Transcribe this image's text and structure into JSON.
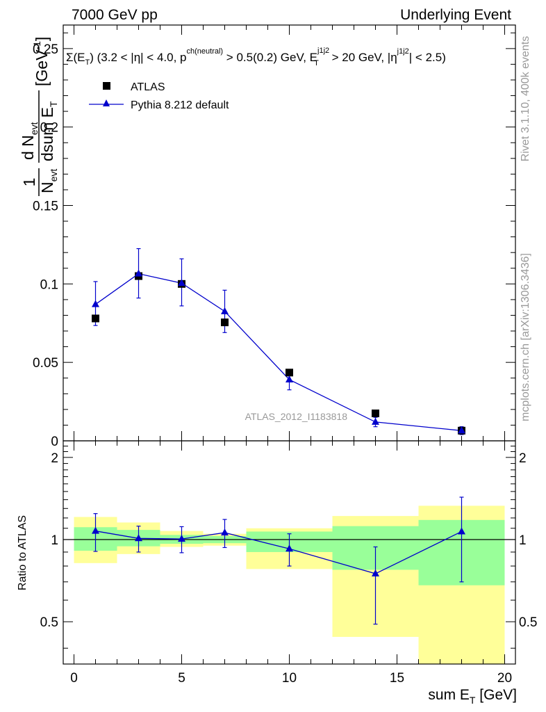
{
  "header": {
    "left": "7000 GeV pp",
    "right": "Underlying Event"
  },
  "side": {
    "rivet": "Rivet 3.1.10,  400k events",
    "mcplots": "mcplots.cern.ch [arXiv:1306.3436]"
  },
  "colors": {
    "data": "#000000",
    "mc": "#0000cc",
    "band_inner": "#99ff99",
    "band_outer": "#ffff99"
  },
  "chart_data": [
    {
      "type": "scatter",
      "name": "main",
      "title": "Σ(E_T) (3.2 < |η| < 4.0, p_T^ch(neutral) > 0.5(0.2) GeV, E_T^j1j2 > 20 GeV, |η^j1j2| < 2.5)",
      "title_parts": {
        "a": "Σ(E",
        "a_sub": "T",
        "b": ") (3.2 < |η| < 4.0, p",
        "b_sup": "ch(neutral)",
        "c": " > 0.5(0.2) GeV, E",
        "c_sup": "j1j2",
        "c_sub": "T",
        "d": " > 20 GeV, |η",
        "d_sup": "j1j2",
        "e": "| < 2.5)"
      },
      "ylabel": "1/N_evt dN_evt/dsum E_T [GeV^-1]",
      "ylabel_parts": {
        "frac_num": "1",
        "frac_den": "N",
        "frac_den_sub": "evt",
        "d_num": "d N",
        "d_num_sub": "evt",
        "d_den": "dsum E",
        "d_den_sub": "T",
        "unit": "[GeV",
        "unit_sup": "-1",
        "unit_close": "]"
      },
      "xlim": [
        -0.5,
        20.5
      ],
      "ylim": [
        0,
        0.265
      ],
      "yticks": [
        0,
        0.05,
        0.1,
        0.15,
        0.2,
        0.25
      ],
      "ytick_labels": [
        "0",
        "0.05",
        "0.1",
        "0.15",
        "0.2",
        "0.25"
      ],
      "watermark": "ATLAS_2012_I1183818",
      "legend": {
        "placement": "top-left",
        "entries": [
          "ATLAS",
          "Pythia 8.212 default"
        ]
      },
      "series": [
        {
          "name": "ATLAS",
          "marker": "square",
          "x": [
            1,
            3,
            5,
            7,
            10,
            14,
            18
          ],
          "y": [
            0.078,
            0.105,
            0.1,
            0.0755,
            0.0435,
            0.0175,
            0.0065
          ],
          "yerr": [
            0,
            0,
            0,
            0,
            0,
            0,
            0
          ]
        },
        {
          "name": "Pythia 8.212 default",
          "marker": "triangle",
          "x": [
            1,
            3,
            5,
            7,
            10,
            14,
            18
          ],
          "y": [
            0.087,
            0.1065,
            0.1005,
            0.0825,
            0.039,
            0.012,
            0.0065
          ],
          "err_lo": [
            0.0135,
            0.0155,
            0.0145,
            0.0135,
            0.0065,
            0.003,
            0.0025
          ],
          "err_hi": [
            0.0145,
            0.016,
            0.0155,
            0.0135,
            0.0065,
            0.003,
            0.0025
          ]
        }
      ]
    },
    {
      "type": "scatter",
      "name": "ratio",
      "xlabel": "sum E_T [GeV]",
      "xlabel_parts": {
        "a": "sum E",
        "sub": "T",
        "b": " [GeV]"
      },
      "ylabel": "Ratio to ATLAS",
      "xlim": [
        -0.5,
        20.5
      ],
      "ylim": [
        0.35,
        2.3
      ],
      "xticks": [
        0,
        5,
        10,
        15,
        20
      ],
      "xtick_labels": [
        "0",
        "5",
        "10",
        "15",
        "20"
      ],
      "yticks": [
        0.5,
        1,
        2
      ],
      "ytick_labels": [
        "0.5",
        "1",
        "2"
      ],
      "reference": 1,
      "bands": [
        {
          "x0": 0,
          "x1": 2,
          "inner": [
            0.91,
            1.11
          ],
          "outer": [
            0.82,
            1.21
          ]
        },
        {
          "x0": 2,
          "x1": 4,
          "inner": [
            0.945,
            1.085
          ],
          "outer": [
            0.885,
            1.155
          ]
        },
        {
          "x0": 4,
          "x1": 6,
          "inner": [
            0.965,
            1.04
          ],
          "outer": [
            0.94,
            1.075
          ]
        },
        {
          "x0": 6,
          "x1": 8,
          "inner": [
            0.97,
            1.03
          ],
          "outer": [
            0.95,
            1.05
          ]
        },
        {
          "x0": 8,
          "x1": 12,
          "inner": [
            0.9,
            1.07
          ],
          "outer": [
            0.78,
            1.1
          ]
        },
        {
          "x0": 12,
          "x1": 16,
          "inner": [
            0.775,
            1.12
          ],
          "outer": [
            0.44,
            1.22
          ]
        },
        {
          "x0": 16,
          "x1": 20,
          "inner": [
            0.68,
            1.18
          ],
          "outer": [
            0.35,
            1.33
          ]
        }
      ],
      "series": [
        {
          "name": "Pythia 8.212 default / ATLAS",
          "x": [
            1,
            3,
            5,
            7,
            10,
            14,
            18
          ],
          "y": [
            1.075,
            1.01,
            1.005,
            1.06,
            0.925,
            0.75,
            1.07
          ],
          "err_lo": [
            0.17,
            0.11,
            0.11,
            0.125,
            0.125,
            0.26,
            0.37
          ],
          "err_hi": [
            0.17,
            0.11,
            0.11,
            0.125,
            0.125,
            0.19,
            0.36
          ]
        }
      ]
    }
  ]
}
